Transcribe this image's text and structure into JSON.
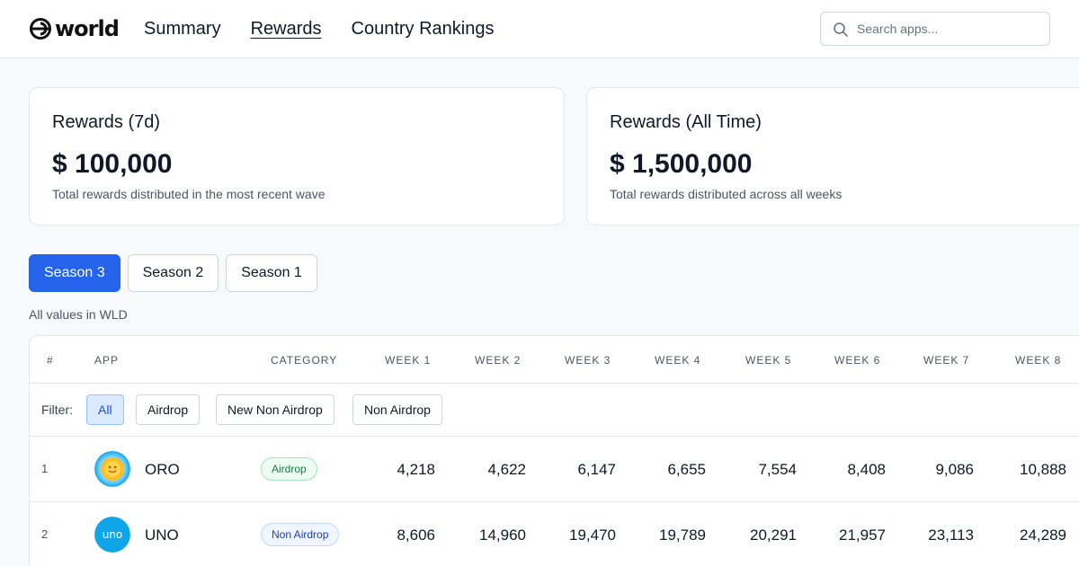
{
  "header": {
    "logo_text": "world",
    "nav": [
      {
        "label": "Summary",
        "active": false
      },
      {
        "label": "Rewards",
        "active": true
      },
      {
        "label": "Country Rankings",
        "active": false
      }
    ],
    "search_placeholder": "Search apps..."
  },
  "cards": [
    {
      "title": "Rewards (7d)",
      "value": "$ 100,000",
      "description": "Total rewards distributed in the most recent wave"
    },
    {
      "title": "Rewards (All Time)",
      "value": "$ 1,500,000",
      "description": "Total rewards distributed across all weeks"
    }
  ],
  "seasons": [
    {
      "label": "Season 3",
      "active": true
    },
    {
      "label": "Season 2",
      "active": false
    },
    {
      "label": "Season 1",
      "active": false
    }
  ],
  "note": "All values in WLD",
  "table": {
    "columns": [
      "#",
      "App",
      "Category",
      "Week 1",
      "Week 2",
      "Week 3",
      "Week 4",
      "Week 5",
      "Week 6",
      "Week 7",
      "Week 8"
    ],
    "filter_label": "Filter:",
    "filters": [
      {
        "label": "All",
        "active": true
      },
      {
        "label": "Airdrop",
        "active": false
      },
      {
        "label": "New Non Airdrop",
        "active": false
      },
      {
        "label": "Non Airdrop",
        "active": false
      }
    ],
    "rows": [
      {
        "rank": "1",
        "app": "ORO",
        "category": "Airdrop",
        "weeks": [
          "4,218",
          "4,622",
          "6,147",
          "6,655",
          "7,554",
          "8,408",
          "9,086",
          "10,888"
        ]
      },
      {
        "rank": "2",
        "app": "UNO",
        "category": "Non Airdrop",
        "weeks": [
          "8,606",
          "14,960",
          "19,470",
          "19,789",
          "20,291",
          "21,957",
          "23,113",
          "24,289"
        ]
      }
    ]
  },
  "colors": {
    "accent": "#2563eb",
    "airdrop_badge": "#15803d",
    "non_airdrop_badge": "#1e40af"
  }
}
